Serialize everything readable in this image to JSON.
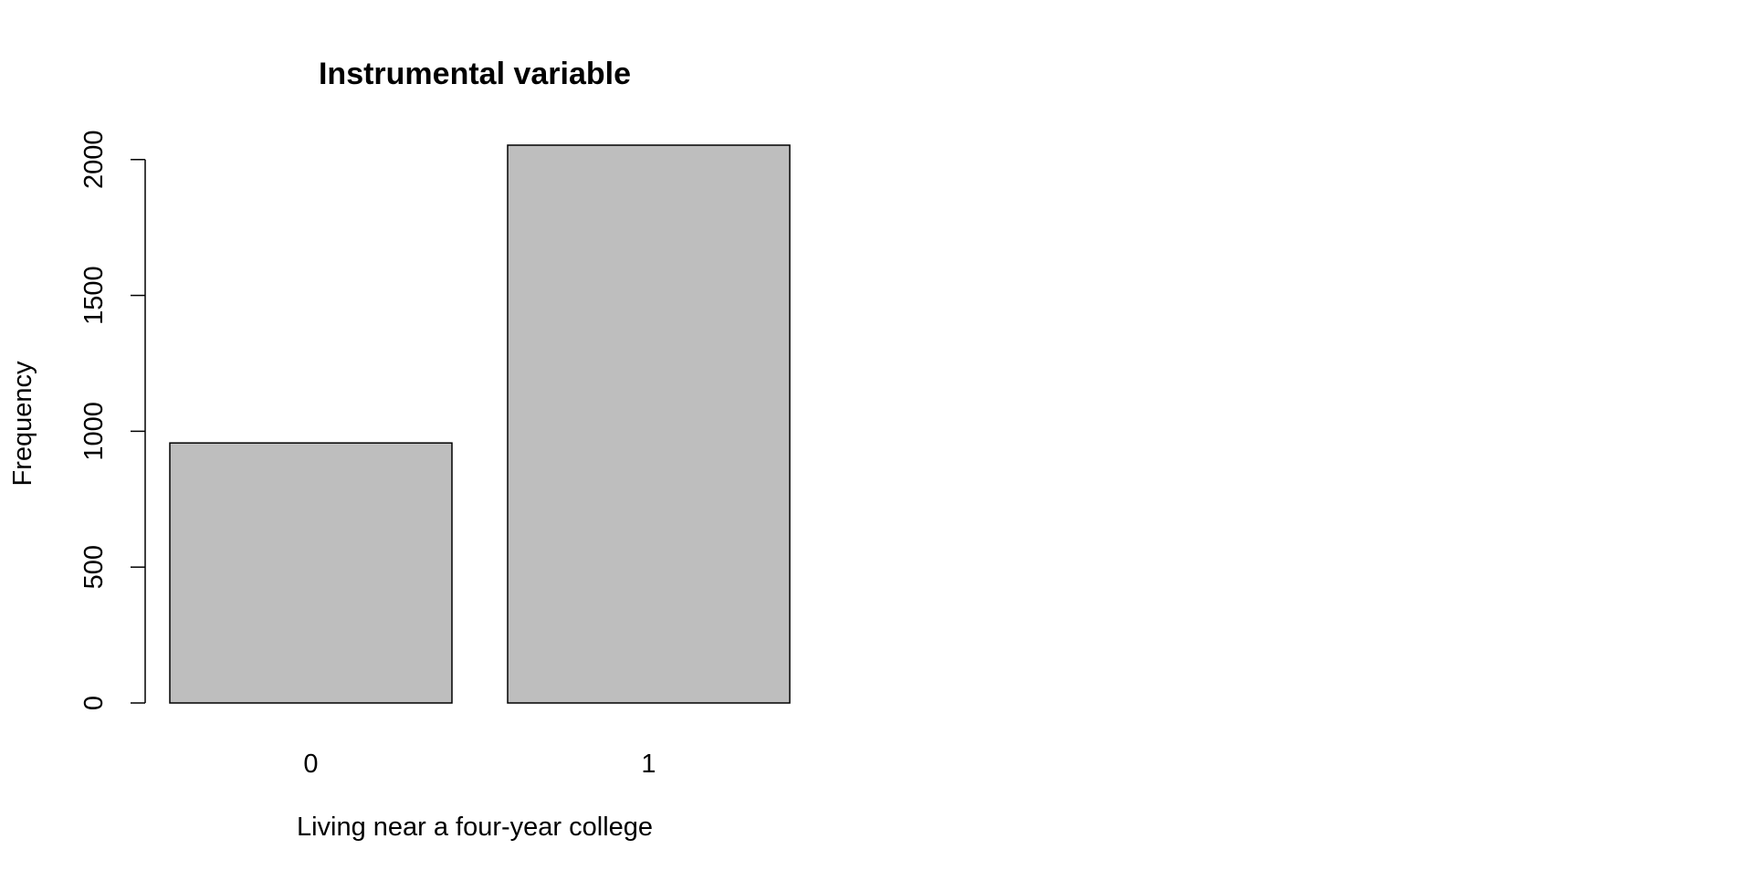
{
  "chart_data": {
    "type": "bar",
    "title": "Instrumental variable",
    "xlabel": "Living near a four-year college",
    "ylabel": "Frequency",
    "categories": [
      "0",
      "1"
    ],
    "values": [
      957,
      2053
    ],
    "ylim": [
      0,
      2053
    ],
    "yticks": [
      0,
      500,
      1000,
      1500,
      2000
    ],
    "grid": false,
    "legend": "none",
    "bar_fill": "#bebebe",
    "bar_stroke": "#000000"
  }
}
